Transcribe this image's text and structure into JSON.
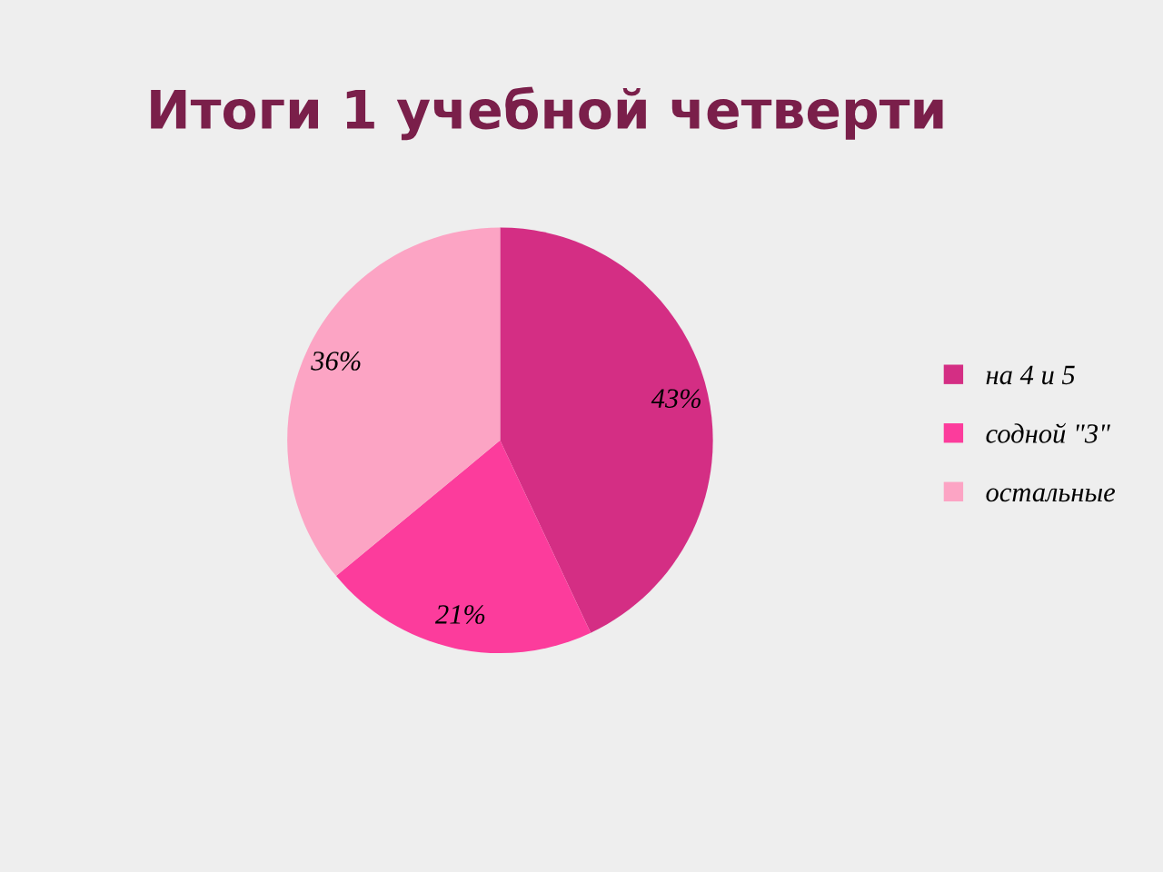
{
  "chart_data": {
    "type": "pie",
    "title": "Итоги 1 учебной четверти",
    "categories": [
      "на 4 и 5",
      "содной \"3\"",
      "остальные"
    ],
    "values": [
      43,
      21,
      36
    ],
    "value_labels": [
      "43%",
      "21%",
      "36%"
    ],
    "colors": [
      "#d42e84",
      "#fc3c9c",
      "#fca4c4"
    ],
    "legend": "right"
  }
}
